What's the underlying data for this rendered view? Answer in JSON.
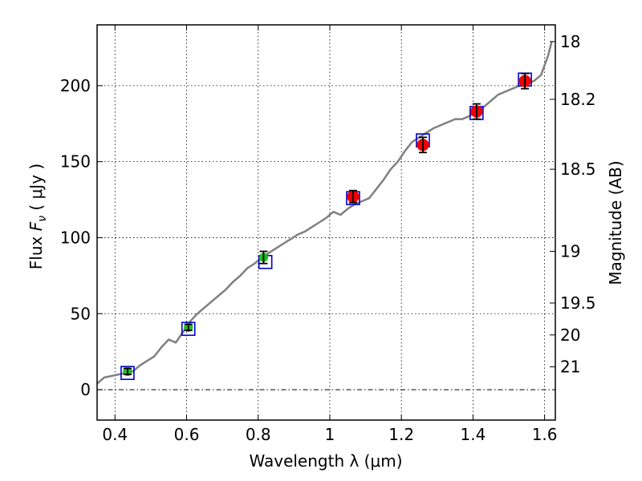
{
  "chart_data": {
    "type": "scatter",
    "xlabel": "Wavelength  λ (μm)",
    "ylabel_prefix": "Flux  ",
    "ylabel_symbol": "F",
    "ylabel_subscript": "ν",
    "ylabel_unit": "  ( μJy )",
    "y2label": "Magnitude (AB)",
    "xlim": [
      0.35,
      1.63
    ],
    "ylim": [
      -20,
      240
    ],
    "grid": true,
    "x_ticks": [
      0.4,
      0.6,
      0.8,
      1.0,
      1.2,
      1.4,
      1.6
    ],
    "x_tick_labels": [
      "0.4",
      "0.6",
      "0.8",
      "1",
      "1.2",
      "1.4",
      "1.6"
    ],
    "y_ticks": [
      0,
      50,
      100,
      150,
      200
    ],
    "y_tick_labels": [
      "0",
      "50",
      "100",
      "150",
      "200"
    ],
    "y2_ticks": [
      {
        "label": "18",
        "flux": 229
      },
      {
        "label": "18.2",
        "flux": 191
      },
      {
        "label": "18.5",
        "flux": 145
      },
      {
        "label": "19",
        "flux": 91
      },
      {
        "label": "19.5",
        "flux": 57
      },
      {
        "label": "20",
        "flux": 36
      },
      {
        "label": "21",
        "flux": 15
      }
    ],
    "spectrum": {
      "color": "#808080",
      "x": [
        0.35,
        0.37,
        0.39,
        0.41,
        0.43,
        0.45,
        0.47,
        0.49,
        0.51,
        0.53,
        0.55,
        0.57,
        0.59,
        0.61,
        0.63,
        0.65,
        0.67,
        0.69,
        0.71,
        0.73,
        0.75,
        0.77,
        0.79,
        0.81,
        0.83,
        0.85,
        0.87,
        0.89,
        0.91,
        0.93,
        0.95,
        0.97,
        0.99,
        1.01,
        1.03,
        1.05,
        1.07,
        1.09,
        1.11,
        1.13,
        1.15,
        1.17,
        1.19,
        1.21,
        1.23,
        1.25,
        1.27,
        1.29,
        1.31,
        1.33,
        1.35,
        1.37,
        1.39,
        1.41,
        1.43,
        1.45,
        1.47,
        1.49,
        1.51,
        1.53,
        1.55,
        1.57,
        1.59,
        1.61,
        1.62
      ],
      "y": [
        4,
        8,
        9,
        10,
        11,
        12,
        16,
        19,
        22,
        28,
        33,
        31,
        38,
        45,
        50,
        54,
        58,
        62,
        66,
        71,
        75,
        80,
        83,
        87,
        90,
        93,
        96,
        99,
        102,
        104,
        107,
        110,
        113,
        117,
        115,
        119,
        122,
        124,
        126,
        132,
        138,
        145,
        150,
        157,
        163,
        166,
        169,
        172,
        174,
        176,
        178,
        178,
        180,
        183,
        186,
        190,
        194,
        196,
        198,
        200,
        202,
        203,
        207,
        220,
        229
      ]
    },
    "photometry_points": [
      {
        "x": 0.435,
        "y": 12,
        "err": 2,
        "color": "#22bb22",
        "size": "small"
      },
      {
        "x": 0.605,
        "y": 41,
        "err": 2,
        "color": "#22bb22",
        "size": "small"
      },
      {
        "x": 0.815,
        "y": 87,
        "err": 4,
        "color": "#22bb22",
        "size": "small"
      },
      {
        "x": 1.065,
        "y": 127,
        "err": 4,
        "color": "#ee0000",
        "size": "large"
      },
      {
        "x": 1.26,
        "y": 161,
        "err": 5,
        "color": "#ee0000",
        "size": "large"
      },
      {
        "x": 1.41,
        "y": 183,
        "err": 5,
        "color": "#ee0000",
        "size": "large"
      },
      {
        "x": 1.545,
        "y": 203,
        "err": 5,
        "color": "#ee0000",
        "size": "large"
      }
    ],
    "model_points": [
      {
        "x": 0.435,
        "y": 11,
        "color": "#0000cc"
      },
      {
        "x": 0.605,
        "y": 40,
        "color": "#0000cc"
      },
      {
        "x": 0.82,
        "y": 84,
        "color": "#0000cc"
      },
      {
        "x": 1.065,
        "y": 126,
        "color": "#0000cc"
      },
      {
        "x": 1.26,
        "y": 164,
        "color": "#0000cc"
      },
      {
        "x": 1.41,
        "y": 182,
        "color": "#0000cc"
      },
      {
        "x": 1.545,
        "y": 204,
        "color": "#0000cc"
      }
    ]
  }
}
